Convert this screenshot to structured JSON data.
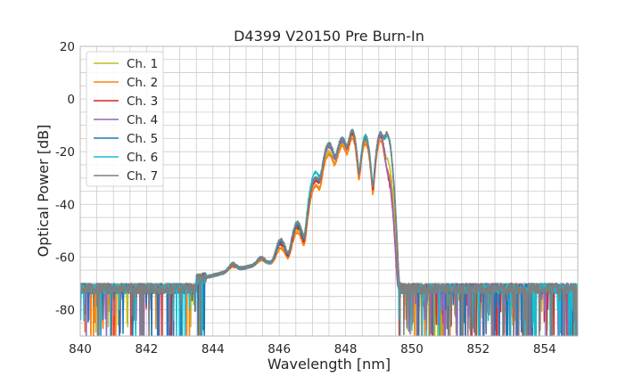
{
  "chart_data": {
    "type": "line",
    "title": "D4399 V20150 Pre Burn-In",
    "xlabel": "Wavelength [nm]",
    "ylabel": "Optical Power [dB]",
    "xlim": [
      840,
      855
    ],
    "ylim": [
      -90,
      20
    ],
    "xticks": [
      840,
      842,
      844,
      846,
      848,
      850,
      852,
      854
    ],
    "yticks": [
      -80,
      -60,
      -40,
      -20,
      0,
      20
    ],
    "grid": true,
    "legend_position": "top-left",
    "noise_floor_db": -72,
    "series": [
      {
        "name": "Ch. 1",
        "color": "#bcbd22",
        "peaks": [
          {
            "x": 844.6,
            "y": -68
          },
          {
            "x": 845.45,
            "y": -65.5
          },
          {
            "x": 846.05,
            "y": -58
          },
          {
            "x": 846.55,
            "y": -50
          },
          {
            "x": 847.1,
            "y": -33
          },
          {
            "x": 847.5,
            "y": -20
          },
          {
            "x": 847.9,
            "y": -17
          },
          {
            "x": 848.2,
            "y": -14
          },
          {
            "x": 848.6,
            "y": -16
          },
          {
            "x": 849.05,
            "y": -14
          },
          {
            "x": 849.25,
            "y": -23
          }
        ]
      },
      {
        "name": "Ch. 2",
        "color": "#ff7f0e",
        "peaks": [
          {
            "x": 844.6,
            "y": -69
          },
          {
            "x": 845.45,
            "y": -66
          },
          {
            "x": 846.05,
            "y": -58.5
          },
          {
            "x": 846.55,
            "y": -51
          },
          {
            "x": 847.1,
            "y": -33
          },
          {
            "x": 847.5,
            "y": -21
          },
          {
            "x": 847.9,
            "y": -18
          },
          {
            "x": 848.2,
            "y": -15
          },
          {
            "x": 848.6,
            "y": -17
          },
          {
            "x": 849.05,
            "y": -16
          },
          {
            "x": 849.25,
            "y": -27
          }
        ]
      },
      {
        "name": "Ch. 3",
        "color": "#d62728",
        "peaks": [
          {
            "x": 844.6,
            "y": -67
          },
          {
            "x": 845.45,
            "y": -64
          },
          {
            "x": 846.05,
            "y": -56
          },
          {
            "x": 846.55,
            "y": -49
          },
          {
            "x": 847.1,
            "y": -31
          },
          {
            "x": 847.5,
            "y": -18
          },
          {
            "x": 847.9,
            "y": -16
          },
          {
            "x": 848.2,
            "y": -13
          },
          {
            "x": 848.6,
            "y": -15
          },
          {
            "x": 849.05,
            "y": -14
          },
          {
            "x": 849.25,
            "y": -30
          }
        ]
      },
      {
        "name": "Ch. 4",
        "color": "#9467bd",
        "peaks": [
          {
            "x": 844.6,
            "y": -67
          },
          {
            "x": 845.45,
            "y": -64
          },
          {
            "x": 846.05,
            "y": -55
          },
          {
            "x": 846.55,
            "y": -48
          },
          {
            "x": 847.1,
            "y": -30
          },
          {
            "x": 847.5,
            "y": -18
          },
          {
            "x": 847.9,
            "y": -16
          },
          {
            "x": 848.2,
            "y": -12
          },
          {
            "x": 848.6,
            "y": -15
          },
          {
            "x": 849.05,
            "y": -14
          },
          {
            "x": 849.25,
            "y": -29
          }
        ]
      },
      {
        "name": "Ch. 5",
        "color": "#1f77b4",
        "peaks": [
          {
            "x": 844.6,
            "y": -67
          },
          {
            "x": 845.45,
            "y": -64
          },
          {
            "x": 846.05,
            "y": -55
          },
          {
            "x": 846.55,
            "y": -48
          },
          {
            "x": 847.1,
            "y": -30
          },
          {
            "x": 847.5,
            "y": -17
          },
          {
            "x": 847.9,
            "y": -15
          },
          {
            "x": 848.2,
            "y": -12
          },
          {
            "x": 848.6,
            "y": -14
          },
          {
            "x": 849.05,
            "y": -13
          },
          {
            "x": 849.25,
            "y": -14
          }
        ]
      },
      {
        "name": "Ch. 6",
        "color": "#17becf",
        "peaks": [
          {
            "x": 844.6,
            "y": -66
          },
          {
            "x": 845.45,
            "y": -64
          },
          {
            "x": 846.05,
            "y": -54
          },
          {
            "x": 846.55,
            "y": -47
          },
          {
            "x": 847.1,
            "y": -28
          },
          {
            "x": 847.5,
            "y": -17
          },
          {
            "x": 847.9,
            "y": -15
          },
          {
            "x": 848.2,
            "y": -12
          },
          {
            "x": 848.6,
            "y": -14
          },
          {
            "x": 849.05,
            "y": -13
          },
          {
            "x": 849.25,
            "y": -14
          }
        ]
      },
      {
        "name": "Ch. 7",
        "color": "#7f7f7f",
        "peaks": [
          {
            "x": 844.6,
            "y": -66
          },
          {
            "x": 845.45,
            "y": -64
          },
          {
            "x": 846.05,
            "y": -54
          },
          {
            "x": 846.55,
            "y": -47
          },
          {
            "x": 847.1,
            "y": -30
          },
          {
            "x": 847.5,
            "y": -17
          },
          {
            "x": 847.9,
            "y": -15
          },
          {
            "x": 848.2,
            "y": -12
          },
          {
            "x": 848.6,
            "y": -15
          },
          {
            "x": 849.05,
            "y": -13
          },
          {
            "x": 849.25,
            "y": -13
          }
        ]
      }
    ]
  }
}
